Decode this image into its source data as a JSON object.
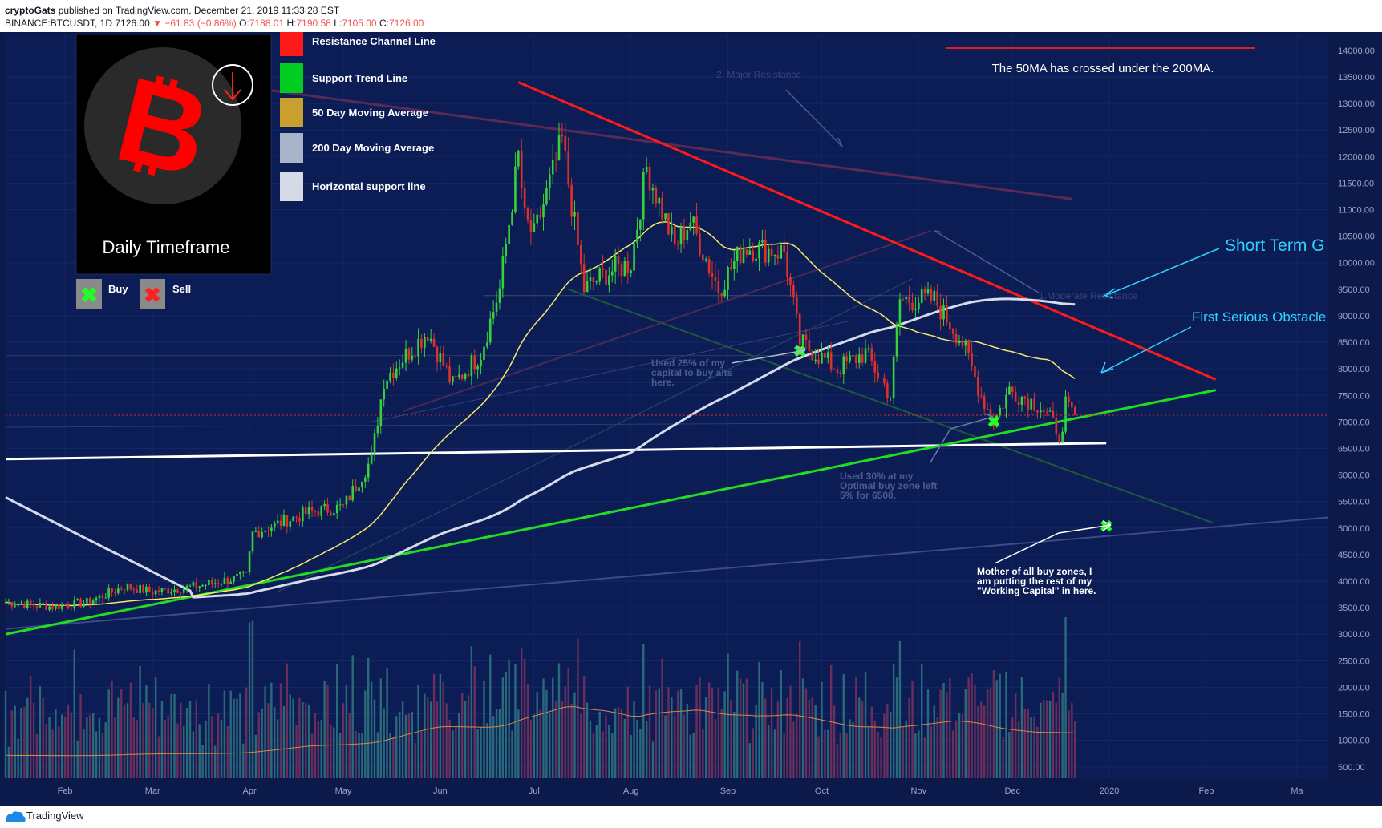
{
  "header": {
    "author": "cryptoGats",
    "published_text": "published on TradingView.com, December 21, 2019 11:33:28 EST",
    "symbol": "BINANCE:BTCUSDT, 1D",
    "last": "7126.00",
    "change": "▼ −61.83 (−0.86%)",
    "open_label": "O:",
    "open": "7188.01",
    "high_label": "H:",
    "high": "7190.58",
    "low_label": "L:",
    "low": "7105.00",
    "close_label": "C:",
    "close": "7126.00"
  },
  "legend": {
    "items": [
      {
        "label": "Resistance Channel Line",
        "color": "#ff1a1a"
      },
      {
        "label": "Support Trend Line",
        "color": "#00cc22"
      },
      {
        "label": "50 Day Moving Average",
        "color": "#c9a030"
      },
      {
        "label": "200 Day Moving Average",
        "color": "#a9b3c9"
      },
      {
        "label": "Horizontal support line",
        "color": "#d5dbe6"
      }
    ],
    "buy_label": "Buy",
    "sell_label": "Sell",
    "timeframe": "Daily Timeframe"
  },
  "annotations": {
    "ma_cross": "The 50MA has crossed under the 200MA.",
    "short_term": "Short Term G",
    "first_obstacle": "First Serious Obstacle",
    "major_resistance": "2. Major Resistance",
    "moderate_resistance": "1.Moderate Resistance",
    "used25": [
      "Used 25% of my",
      "capital to buy alts",
      "here."
    ],
    "used30": [
      "Used 30% at my",
      "Optimal buy zone left",
      "5% for 6500."
    ],
    "mother": [
      "Mother of all buy zones, I",
      "am putting the rest of my",
      "\"Working Capital\" in here."
    ]
  },
  "footer": {
    "brand": "TradingView"
  },
  "chart_data": {
    "type": "candlestick",
    "symbol": "BINANCE:BTCUSDT",
    "interval": "1D",
    "ylim": [
      300,
      14300
    ],
    "y_ticks": [
      500,
      1000,
      1500,
      2000,
      2500,
      3000,
      3500,
      4000,
      4500,
      5000,
      5500,
      6000,
      6500,
      7000,
      7500,
      8000,
      8500,
      9000,
      9500,
      10000,
      10500,
      11000,
      11500,
      12000,
      12500,
      13000,
      13500,
      14000
    ],
    "x_ticks": [
      "Feb",
      "Mar",
      "Apr",
      "May",
      "Jun",
      "Jul",
      "Aug",
      "Sep",
      "Oct",
      "Nov",
      "Dec",
      "2020",
      "Feb",
      "Ma"
    ],
    "x_range": [
      "2019-01-13",
      "2020-03-11"
    ],
    "last_price_label": "7126.00",
    "last_price": 7126,
    "price_path": [
      [
        "2019-01-13",
        3600
      ],
      [
        "2019-01-28",
        3520
      ],
      [
        "2019-02-08",
        3600
      ],
      [
        "2019-02-20",
        3900
      ],
      [
        "2019-03-01",
        3800
      ],
      [
        "2019-03-15",
        3900
      ],
      [
        "2019-03-31",
        4100
      ],
      [
        "2019-04-02",
        4900
      ],
      [
        "2019-04-20",
        5300
      ],
      [
        "2019-05-01",
        5400
      ],
      [
        "2019-05-10",
        6300
      ],
      [
        "2019-05-14",
        7800
      ],
      [
        "2019-05-20",
        8200
      ],
      [
        "2019-05-28",
        8700
      ],
      [
        "2019-06-05",
        7700
      ],
      [
        "2019-06-14",
        8300
      ],
      [
        "2019-06-20",
        9500
      ],
      [
        "2019-06-26",
        12000
      ],
      [
        "2019-06-28",
        10800
      ],
      [
        "2019-07-01",
        10500
      ],
      [
        "2019-07-10",
        12300
      ],
      [
        "2019-07-17",
        9500
      ],
      [
        "2019-07-24",
        9800
      ],
      [
        "2019-08-01",
        10000
      ],
      [
        "2019-08-06",
        11800
      ],
      [
        "2019-08-15",
        10300
      ],
      [
        "2019-08-20",
        10800
      ],
      [
        "2019-08-29",
        9500
      ],
      [
        "2019-09-06",
        10300
      ],
      [
        "2019-09-19",
        10200
      ],
      [
        "2019-09-24",
        8500
      ],
      [
        "2019-10-06",
        8000
      ],
      [
        "2019-10-15",
        8300
      ],
      [
        "2019-10-23",
        7500
      ],
      [
        "2019-10-26",
        9300
      ],
      [
        "2019-11-06",
        9300
      ],
      [
        "2019-11-15",
        8500
      ],
      [
        "2019-11-21",
        7500
      ],
      [
        "2019-11-25",
        7000
      ],
      [
        "2019-11-30",
        7600
      ],
      [
        "2019-12-10",
        7300
      ],
      [
        "2019-12-17",
        6700
      ],
      [
        "2019-12-18",
        7300
      ],
      [
        "2019-12-21",
        7126
      ]
    ],
    "lines": {
      "resistance_trend": [
        [
          "2019-06-26",
          13400
        ],
        [
          "2020-02-04",
          7800
        ]
      ],
      "support_trend": [
        [
          "2019-01-13",
          3000
        ],
        [
          "2020-02-04",
          7600
        ]
      ],
      "horizontal_support": [
        [
          "2019-01-13",
          6300
        ],
        [
          "2019-12-31",
          6600
        ]
      ],
      "ma50_last": 7850,
      "ma200_last": 9300
    },
    "volume_ylim": [
      0,
      4000
    ]
  }
}
